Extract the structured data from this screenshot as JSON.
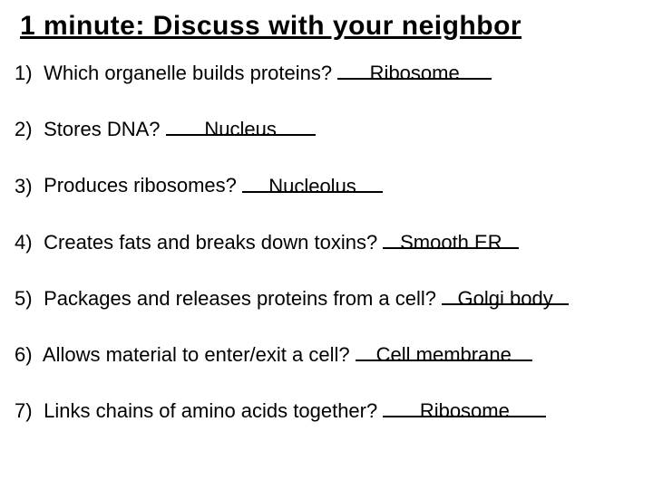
{
  "title": "1 minute: Discuss with your neighbor",
  "text_color": "#000000",
  "background_color": "#ffffff",
  "title_fontsize": 30,
  "question_fontsize": 22,
  "underline_color": "#000000",
  "questions": [
    {
      "num": "1)",
      "text": "Which organelle builds proteins? ",
      "answer": "Ribosome",
      "blank_width": 170
    },
    {
      "num": "2)",
      "text": "Stores DNA? ",
      "answer": "Nucleus",
      "blank_width": 165
    },
    {
      "num": "3)",
      "text": "Produces ribosomes? ",
      "answer": "Nucleolus",
      "blank_width": 155
    },
    {
      "num": "4)",
      "text": "Creates fats and breaks down toxins? ",
      "answer": "Smooth ER",
      "blank_width": 150
    },
    {
      "num": "5)",
      "text": "Packages and releases proteins from a cell? ",
      "answer": "Golgi body",
      "blank_width": 140
    },
    {
      "num": "6)",
      "text": "Allows material to enter/exit a cell? ",
      "answer": "Cell membrane",
      "blank_width": 195
    },
    {
      "num": "7)",
      "text": "Links chains of amino acids together? ",
      "answer": "Ribosome",
      "blank_width": 180
    }
  ]
}
